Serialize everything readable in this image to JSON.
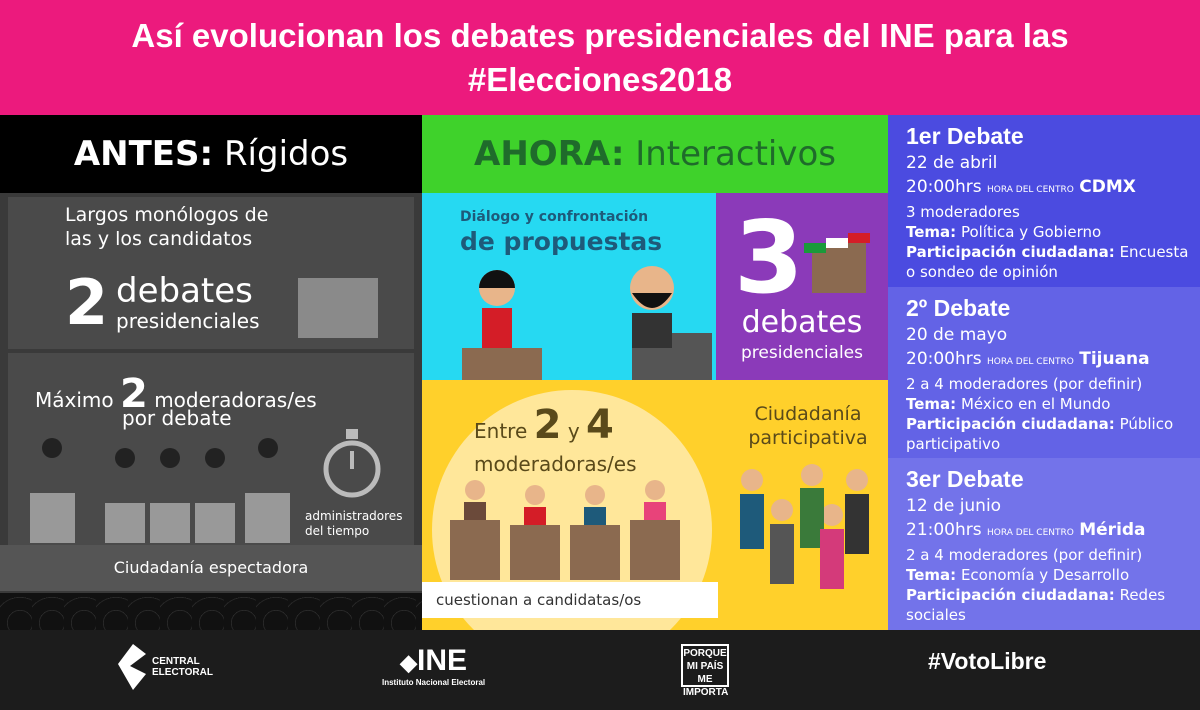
{
  "header": {
    "title_line1": "Así evolucionan los debates presidenciales del INE para las",
    "title_line2": "#Elecciones2018"
  },
  "antes": {
    "label": "ANTES:",
    "title": "Rígidos",
    "monologos": "Largos monólogos de las y los candidatos",
    "num_debates": "2",
    "debates": "debates",
    "presidenciales": "presidenciales",
    "maximo": "Máximo",
    "num_mod": "2",
    "moderadoras": "moderadoras/es",
    "por_debate": "por debate",
    "administradores": "administradores del tiempo",
    "ciudadania": "Ciudadanía espectadora"
  },
  "ahora": {
    "label": "AHORA:",
    "title": "Interactivos",
    "dialogo1": "Diálogo y confrontación",
    "dialogo2": "de propuestas",
    "num_debates": "3",
    "debates": "debates",
    "presidenciales": "presidenciales",
    "entre": "Entre",
    "n2": "2",
    "y": "y",
    "n4": "4",
    "moderadoras": "moderadoras/es",
    "cuestionan": "cuestionan a candidatas/os",
    "ciudadania": "Ciudadanía participativa"
  },
  "debates": [
    {
      "title": "1er Debate",
      "date": "22 de abril",
      "time": "20:00hrs",
      "tz": "HORA DEL CENTRO",
      "city": "CDMX",
      "moderators": "3 moderadores",
      "tema_label": "Tema:",
      "tema": "Política y Gobierno",
      "part_label": "Participación ciudadana:",
      "part": "Encuesta o sondeo de opinión",
      "color": "#4b4be0"
    },
    {
      "title": "2º Debate",
      "date": "20 de mayo",
      "time": "20:00hrs",
      "tz": "HORA DEL CENTRO",
      "city": "Tijuana",
      "moderators": "2 a 4 moderadores (por definir)",
      "tema_label": "Tema:",
      "tema": "México en el Mundo",
      "part_label": "Participación ciudadana:",
      "part": "Público participativo",
      "color": "#6363e6"
    },
    {
      "title": "3er Debate",
      "date": "12 de junio",
      "time": "21:00hrs",
      "tz": "HORA DEL CENTRO",
      "city": "Mérida",
      "moderators": "2 a 4 moderadores (por definir)",
      "tema_label": "Tema:",
      "tema": "Economía y Desarrollo",
      "part_label": "Participación ciudadana:",
      "part": "Redes sociales",
      "color": "#7373ea"
    }
  ],
  "footer": {
    "central_electoral": "CENTRAL ELECTORAL",
    "ine": "INE",
    "ine_sub": "Instituto Nacional Electoral",
    "porque": "PORQUE MI PAÍS ME IMPORTA",
    "hashtag": "#VotoLibre"
  }
}
